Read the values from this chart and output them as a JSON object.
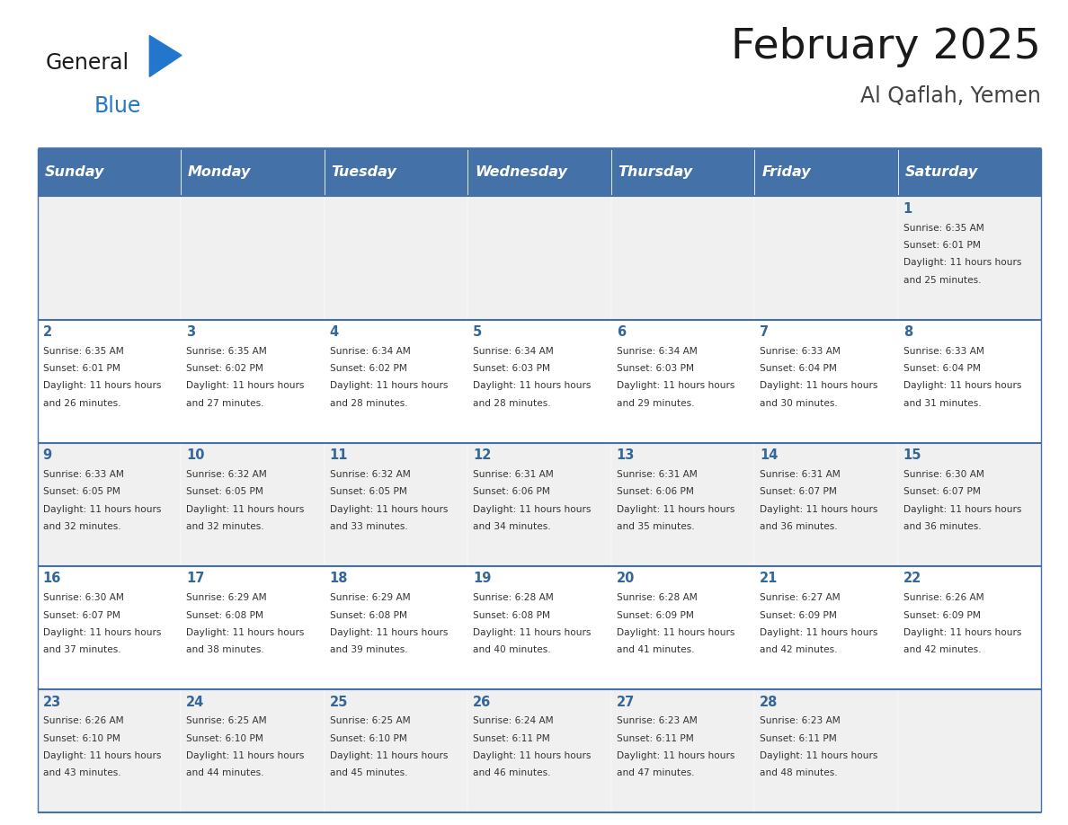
{
  "title": "February 2025",
  "subtitle": "Al Qaflah, Yemen",
  "days_of_week": [
    "Sunday",
    "Monday",
    "Tuesday",
    "Wednesday",
    "Thursday",
    "Friday",
    "Saturday"
  ],
  "header_bg": "#4472a8",
  "header_text": "#ffffff",
  "cell_bg_light": "#f0f0f0",
  "cell_bg_white": "#ffffff",
  "day_text_color": "#336699",
  "info_text_color": "#333333",
  "border_color": "#4472a8",
  "title_color": "#1a1a1a",
  "subtitle_color": "#444444",
  "logo_general_color": "#1a1a1a",
  "logo_blue_color": "#2277cc",
  "calendar_data": [
    [
      {
        "day": null,
        "sunrise": null,
        "sunset": null,
        "daylight": null
      },
      {
        "day": null,
        "sunrise": null,
        "sunset": null,
        "daylight": null
      },
      {
        "day": null,
        "sunrise": null,
        "sunset": null,
        "daylight": null
      },
      {
        "day": null,
        "sunrise": null,
        "sunset": null,
        "daylight": null
      },
      {
        "day": null,
        "sunrise": null,
        "sunset": null,
        "daylight": null
      },
      {
        "day": null,
        "sunrise": null,
        "sunset": null,
        "daylight": null
      },
      {
        "day": 1,
        "sunrise": "6:35 AM",
        "sunset": "6:01 PM",
        "daylight": "11 hours and 25 minutes."
      }
    ],
    [
      {
        "day": 2,
        "sunrise": "6:35 AM",
        "sunset": "6:01 PM",
        "daylight": "11 hours and 26 minutes."
      },
      {
        "day": 3,
        "sunrise": "6:35 AM",
        "sunset": "6:02 PM",
        "daylight": "11 hours and 27 minutes."
      },
      {
        "day": 4,
        "sunrise": "6:34 AM",
        "sunset": "6:02 PM",
        "daylight": "11 hours and 28 minutes."
      },
      {
        "day": 5,
        "sunrise": "6:34 AM",
        "sunset": "6:03 PM",
        "daylight": "11 hours and 28 minutes."
      },
      {
        "day": 6,
        "sunrise": "6:34 AM",
        "sunset": "6:03 PM",
        "daylight": "11 hours and 29 minutes."
      },
      {
        "day": 7,
        "sunrise": "6:33 AM",
        "sunset": "6:04 PM",
        "daylight": "11 hours and 30 minutes."
      },
      {
        "day": 8,
        "sunrise": "6:33 AM",
        "sunset": "6:04 PM",
        "daylight": "11 hours and 31 minutes."
      }
    ],
    [
      {
        "day": 9,
        "sunrise": "6:33 AM",
        "sunset": "6:05 PM",
        "daylight": "11 hours and 32 minutes."
      },
      {
        "day": 10,
        "sunrise": "6:32 AM",
        "sunset": "6:05 PM",
        "daylight": "11 hours and 32 minutes."
      },
      {
        "day": 11,
        "sunrise": "6:32 AM",
        "sunset": "6:05 PM",
        "daylight": "11 hours and 33 minutes."
      },
      {
        "day": 12,
        "sunrise": "6:31 AM",
        "sunset": "6:06 PM",
        "daylight": "11 hours and 34 minutes."
      },
      {
        "day": 13,
        "sunrise": "6:31 AM",
        "sunset": "6:06 PM",
        "daylight": "11 hours and 35 minutes."
      },
      {
        "day": 14,
        "sunrise": "6:31 AM",
        "sunset": "6:07 PM",
        "daylight": "11 hours and 36 minutes."
      },
      {
        "day": 15,
        "sunrise": "6:30 AM",
        "sunset": "6:07 PM",
        "daylight": "11 hours and 36 minutes."
      }
    ],
    [
      {
        "day": 16,
        "sunrise": "6:30 AM",
        "sunset": "6:07 PM",
        "daylight": "11 hours and 37 minutes."
      },
      {
        "day": 17,
        "sunrise": "6:29 AM",
        "sunset": "6:08 PM",
        "daylight": "11 hours and 38 minutes."
      },
      {
        "day": 18,
        "sunrise": "6:29 AM",
        "sunset": "6:08 PM",
        "daylight": "11 hours and 39 minutes."
      },
      {
        "day": 19,
        "sunrise": "6:28 AM",
        "sunset": "6:08 PM",
        "daylight": "11 hours and 40 minutes."
      },
      {
        "day": 20,
        "sunrise": "6:28 AM",
        "sunset": "6:09 PM",
        "daylight": "11 hours and 41 minutes."
      },
      {
        "day": 21,
        "sunrise": "6:27 AM",
        "sunset": "6:09 PM",
        "daylight": "11 hours and 42 minutes."
      },
      {
        "day": 22,
        "sunrise": "6:26 AM",
        "sunset": "6:09 PM",
        "daylight": "11 hours and 42 minutes."
      }
    ],
    [
      {
        "day": 23,
        "sunrise": "6:26 AM",
        "sunset": "6:10 PM",
        "daylight": "11 hours and 43 minutes."
      },
      {
        "day": 24,
        "sunrise": "6:25 AM",
        "sunset": "6:10 PM",
        "daylight": "11 hours and 44 minutes."
      },
      {
        "day": 25,
        "sunrise": "6:25 AM",
        "sunset": "6:10 PM",
        "daylight": "11 hours and 45 minutes."
      },
      {
        "day": 26,
        "sunrise": "6:24 AM",
        "sunset": "6:11 PM",
        "daylight": "11 hours and 46 minutes."
      },
      {
        "day": 27,
        "sunrise": "6:23 AM",
        "sunset": "6:11 PM",
        "daylight": "11 hours and 47 minutes."
      },
      {
        "day": 28,
        "sunrise": "6:23 AM",
        "sunset": "6:11 PM",
        "daylight": "11 hours and 48 minutes."
      },
      {
        "day": null,
        "sunrise": null,
        "sunset": null,
        "daylight": null
      }
    ]
  ]
}
